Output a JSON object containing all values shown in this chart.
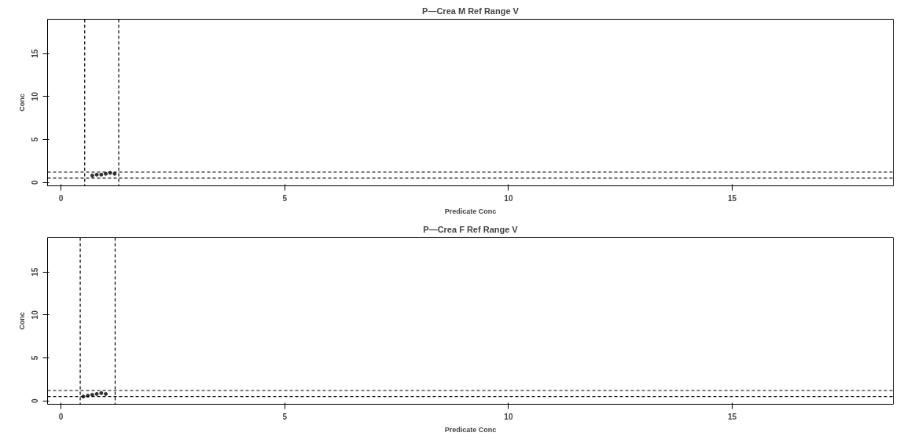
{
  "chart_data": [
    {
      "type": "scatter",
      "title": "P—Crea M Ref Range V",
      "xlabel": "Predicate Conc",
      "ylabel": "Conc",
      "xlim": [
        -0.3,
        18.6
      ],
      "ylim": [
        -0.4,
        19
      ],
      "xticks": [
        0,
        5,
        10,
        15
      ],
      "yticks": [
        0,
        5,
        10,
        15
      ],
      "grid": false,
      "marker": "circle",
      "series": [
        {
          "color": "#333333",
          "x": [
            0.7,
            0.8,
            0.9,
            1.0,
            1.1,
            1.2
          ],
          "values": [
            0.8,
            0.9,
            0.9,
            1.0,
            1.1,
            1.0
          ]
        }
      ],
      "ref_lines": [
        {
          "axis": "x",
          "value": 0.53,
          "line_style": "dashed",
          "color": "#000000"
        },
        {
          "axis": "x",
          "value": 1.29,
          "line_style": "dashed",
          "color": "#000000"
        },
        {
          "axis": "y",
          "value": 1.2,
          "line_style": "dashed",
          "color": "#000000"
        },
        {
          "axis": "y",
          "value": 0.5,
          "line_style": "dashed",
          "color": "#000000"
        }
      ]
    },
    {
      "type": "scatter",
      "title": "P—Crea F Ref Range V",
      "xlabel": "Predicate Conc",
      "ylabel": "Conc",
      "xlim": [
        -0.3,
        18.6
      ],
      "ylim": [
        -0.4,
        19
      ],
      "xticks": [
        0,
        5,
        10,
        15
      ],
      "yticks": [
        0,
        5,
        10,
        15
      ],
      "grid": false,
      "marker": "circle",
      "series": [
        {
          "color": "#333333",
          "x": [
            0.5,
            0.6,
            0.7,
            0.8,
            0.9,
            1.0
          ],
          "values": [
            0.5,
            0.6,
            0.7,
            0.8,
            0.9,
            0.8
          ]
        }
      ],
      "ref_lines": [
        {
          "axis": "x",
          "value": 0.43,
          "line_style": "dashed",
          "color": "#000000"
        },
        {
          "axis": "x",
          "value": 1.21,
          "line_style": "dashed",
          "color": "#000000"
        },
        {
          "axis": "y",
          "value": 1.2,
          "line_style": "dashed",
          "color": "#000000"
        },
        {
          "axis": "y",
          "value": 0.5,
          "line_style": "dashed",
          "color": "#000000"
        }
      ]
    }
  ]
}
